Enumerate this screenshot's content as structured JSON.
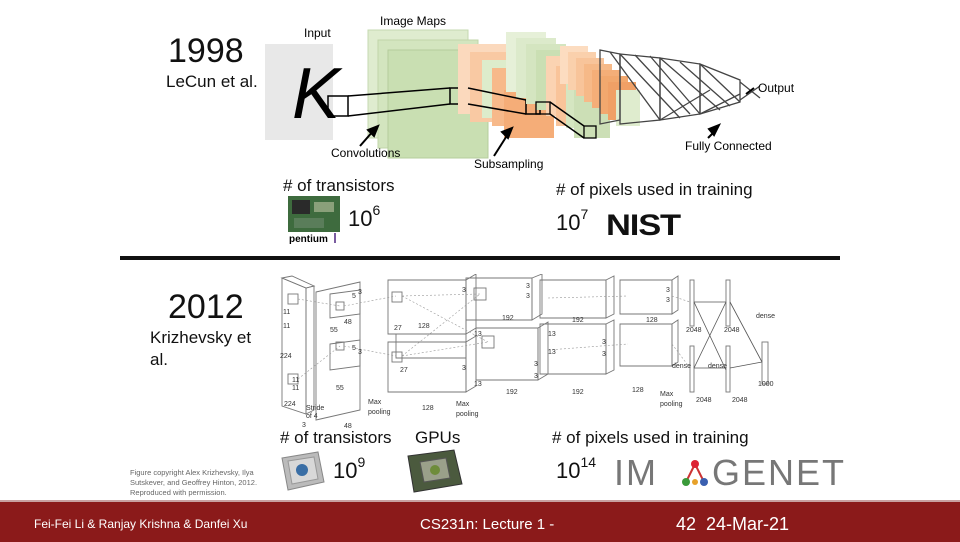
{
  "lenet": {
    "year": "1998",
    "authors": "LeCun et al.",
    "labels": {
      "input": "Input",
      "image_maps": "Image Maps",
      "output": "Output",
      "convolutions": "Convolutions",
      "subsampling": "Subsampling",
      "fully_connected": "Fully Connected"
    },
    "input_glyph": "K",
    "transistors_label": "# of transistors",
    "transistors_base": "10",
    "transistors_exp": "6",
    "pentium_logo": "pentium",
    "pixels_label": "# of pixels used in training",
    "pixels_base": "10",
    "pixels_exp": "7",
    "nist_logo": "NIST"
  },
  "alexnet": {
    "year": "2012",
    "authors_line1": "Krizhevsky et",
    "authors_line2": "al.",
    "diagram_labels": {
      "l11a": "11",
      "l11b": "11",
      "l224a": "224",
      "l224b": "224",
      "l11c": "11",
      "l11d": "11",
      "stride": "Stride",
      "of4": "of 4",
      "l3a": "3",
      "l55a": "55",
      "l55b": "55",
      "l48a": "48",
      "l48b": "48",
      "l5a": "5",
      "l5b": "5",
      "l27a": "27",
      "l27b": "27",
      "l128a": "128",
      "l128b": "128",
      "l13a": "13",
      "l13b": "13",
      "l13c": "13",
      "l13d": "13",
      "l192a": "192",
      "l192b": "192",
      "l192c": "192",
      "l192d": "192",
      "l128c": "128",
      "l128d": "128",
      "l2048a": "2048",
      "l2048b": "2048",
      "l2048c": "2048",
      "l2048d": "2048",
      "dense1": "dense",
      "dense2": "dense",
      "dense3": "dense",
      "l1000": "1000",
      "maxpool1a": "Max",
      "maxpool1b": "pooling",
      "maxpool2a": "Max",
      "maxpool2b": "pooling",
      "maxpool3a": "Max",
      "maxpool3b": "pooling",
      "l3b": "3",
      "l3c": "3",
      "l3d": "3",
      "l3e": "3",
      "l3f": "3",
      "l3g": "3",
      "l3h": "3",
      "l3i": "3",
      "l3j": "3",
      "l3k": "3",
      "l3l": "3",
      "l3m": "3"
    },
    "transistors_label": "# of transistors",
    "gpus_label": "GPUs",
    "transistors_base": "10",
    "transistors_exp": "9",
    "pixels_label": "# of pixels used in training",
    "pixels_base": "10",
    "pixels_exp": "14",
    "imagenet_logo_left": "IM",
    "imagenet_logo_right": "GENET",
    "credit_line1": "Figure copyright Alex Krizhevsky, Ilya",
    "credit_line2": "Sutskever, and Geoffrey Hinton, 2012.",
    "credit_line3": "Reproduced with permission."
  },
  "footer": {
    "authors": "Fei-Fei Li & Ranjay Krishna & Danfei Xu",
    "course": "CS231n: Lecture 1 -",
    "page": "42",
    "date": "24-Mar-21"
  },
  "colors": {
    "footer_bg": "#8b1a1a",
    "map_green": "#d6e6c3",
    "map_orange": "#f7c59f"
  }
}
